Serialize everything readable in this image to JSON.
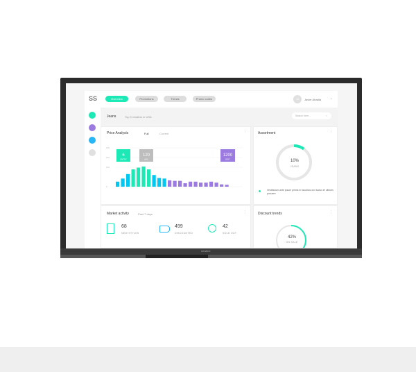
{
  "nav": {
    "logo": "SS",
    "tabs": [
      "Overview",
      "Promotions",
      "Trends",
      "Promo codes"
    ],
    "active_tab": "Overview",
    "user_initials": "JA",
    "user_name": "Javier Abadia"
  },
  "header": {
    "title": "Jeans",
    "subtitle": "Top 5 retailers in USA",
    "search_placeholder": "Search here..."
  },
  "sidebar": {
    "icons": [
      "jeans-icon",
      "shoe-icon",
      "shirt-icon",
      "more-icon"
    ]
  },
  "price_analysis": {
    "title": "Price Analysis",
    "tabs": [
      "Full",
      "Current"
    ],
    "markers": [
      {
        "value": "6",
        "label": "ENTRY",
        "color": "#1de9b6"
      },
      {
        "value": "120",
        "label": "AVG",
        "color": "#bdbdbd"
      },
      {
        "value": "1200",
        "label": "EXIT",
        "color": "#9c7be0"
      }
    ]
  },
  "chart_data": {
    "type": "bar",
    "yticks": [
      "0",
      "100",
      "150",
      "200"
    ],
    "ylim": [
      0,
      200
    ],
    "values": [
      26,
      42,
      65,
      89,
      98,
      104,
      89,
      60,
      45,
      42,
      33,
      30,
      30,
      18,
      26,
      26,
      21,
      21,
      26,
      21,
      12,
      10
    ],
    "colors": {
      "low": "#00c8f0",
      "high": "#1de9b6",
      "tail": "#9c7be0"
    }
  },
  "assortment": {
    "title": "Assortment",
    "percent": "10%",
    "label": "JEANS",
    "fraction": 0.1,
    "legend": "Vestibulum ante ipsum primis in faucibus orci luctus et ultrices posuere",
    "accent": "#1de9b6"
  },
  "market": {
    "title": "Market activity",
    "period": "Past 7 days",
    "stats": [
      {
        "value": "68",
        "label": "NEW STYLES",
        "icon": "jeans-icon"
      },
      {
        "value": "499",
        "label": "DISCOUNTED",
        "icon": "tag-icon"
      },
      {
        "value": "42",
        "label": "SOLD OUT",
        "icon": "sold-out-icon"
      }
    ]
  },
  "discount": {
    "title": "Discount trends",
    "percent": "42%",
    "label": "ON SALE",
    "fraction": 0.42
  },
  "device": {
    "brand": "newline"
  }
}
